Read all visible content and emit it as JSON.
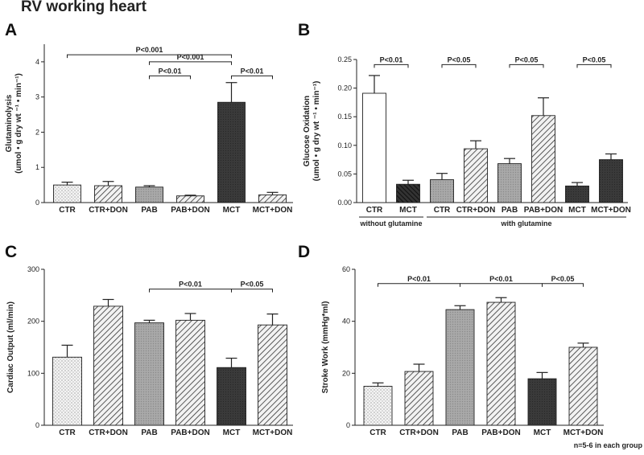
{
  "figure_title": "RV working heart",
  "footnote": "n=5-6 in each group",
  "chart_data": [
    {
      "panel": "A",
      "type": "bar",
      "ylabel_line1": "Glutaminolysis",
      "ylabel_line2": "(umol • g dry wt ⁻¹ • min⁻¹)",
      "ylim": [
        0,
        4.5
      ],
      "yticks": [
        0,
        1,
        2,
        3,
        4
      ],
      "categories": [
        "CTR",
        "CTR+DON",
        "PAB",
        "PAB+DON",
        "MCT",
        "MCT+DON"
      ],
      "values": [
        0.5,
        0.48,
        0.44,
        0.19,
        2.85,
        0.22
      ],
      "errors": [
        0.08,
        0.12,
        0.04,
        0.02,
        0.56,
        0.07
      ],
      "fills": [
        "dots",
        "diagR",
        "dense",
        "diagR",
        "dark",
        "diagR"
      ],
      "significance": [
        {
          "label": "P<0.001",
          "from": 0,
          "to": 4,
          "y": 4.2
        },
        {
          "label": "P<0.001",
          "from": 2,
          "to": 4,
          "y": 4.0
        },
        {
          "label": "P<0.01",
          "from": 2,
          "to": 3,
          "y": 3.6
        },
        {
          "label": "P<0.01",
          "from": 4,
          "to": 5,
          "y": 3.6
        }
      ]
    },
    {
      "panel": "B",
      "type": "bar",
      "ylabel_line1": "Glucose Oxidation",
      "ylabel_line2": "(umol • g dry wt ⁻¹ • min⁻¹)",
      "ylim": [
        0,
        0.25
      ],
      "yticks": [
        0.0,
        0.05,
        0.1,
        0.15,
        0.2,
        0.25
      ],
      "categories": [
        "CTR",
        "MCT",
        "CTR",
        "CTR+DON",
        "PAB",
        "PAB+DON",
        "MCT",
        "MCT+DON"
      ],
      "values": [
        0.191,
        0.032,
        0.04,
        0.094,
        0.068,
        0.152,
        0.029,
        0.075
      ],
      "errors": [
        0.031,
        0.007,
        0.011,
        0.014,
        0.009,
        0.031,
        0.006,
        0.01
      ],
      "fills": [
        "white",
        "diagL",
        "dense",
        "diagR",
        "dense",
        "diagR",
        "dark",
        "dark"
      ],
      "significance": [
        {
          "label": "P<0.01",
          "from": 0,
          "to": 1,
          "y": 0.241
        },
        {
          "label": "P<0.05",
          "from": 2,
          "to": 3,
          "y": 0.241
        },
        {
          "label": "P<0.05",
          "from": 4,
          "to": 5,
          "y": 0.241
        },
        {
          "label": "P<0.05",
          "from": 6,
          "to": 7,
          "y": 0.241
        }
      ],
      "groups": [
        {
          "label": "without glutamine",
          "from": 0,
          "to": 1
        },
        {
          "label": "with glutamine",
          "from": 2,
          "to": 7
        }
      ]
    },
    {
      "panel": "C",
      "type": "bar",
      "ylabel_line1": "Cardiac Output (ml/min)",
      "ylabel_line2": "",
      "ylim": [
        0,
        300
      ],
      "yticks": [
        0,
        100,
        200,
        300
      ],
      "categories": [
        "CTR",
        "CTR+DON",
        "PAB",
        "PAB+DON",
        "MCT",
        "MCT+DON"
      ],
      "values": [
        131,
        229,
        197,
        202,
        111,
        193
      ],
      "errors": [
        23,
        13,
        5,
        13,
        18,
        21
      ],
      "fills": [
        "dots",
        "diagR",
        "dense",
        "diagR",
        "dark",
        "diagR"
      ],
      "significance": [
        {
          "label": "P<0.01",
          "from": 2,
          "to": 4,
          "y": 262
        },
        {
          "label": "P<0.05",
          "from": 4,
          "to": 5,
          "y": 262
        }
      ]
    },
    {
      "panel": "D",
      "type": "bar",
      "ylabel_line1": "Stroke Work (mmHg*ml)",
      "ylabel_line2": "",
      "ylim": [
        0,
        60
      ],
      "yticks": [
        0,
        20,
        40,
        60
      ],
      "categories": [
        "CTR",
        "CTR+DON",
        "PAB",
        "PAB+DON",
        "MCT",
        "MCT+DON"
      ],
      "values": [
        15,
        20.7,
        44.5,
        47.3,
        17.9,
        30
      ],
      "errors": [
        1.3,
        2.8,
        1.5,
        1.8,
        2.4,
        1.6
      ],
      "fills": [
        "dots",
        "diagR",
        "dense",
        "diagR",
        "dark",
        "diagR"
      ],
      "significance": [
        {
          "label": "P<0.01",
          "from": 0,
          "to": 2,
          "y": 54.5
        },
        {
          "label": "P<0.01",
          "from": 2,
          "to": 4,
          "y": 54.5
        },
        {
          "label": "P<0.05",
          "from": 4,
          "to": 5,
          "y": 54.5
        }
      ]
    }
  ]
}
